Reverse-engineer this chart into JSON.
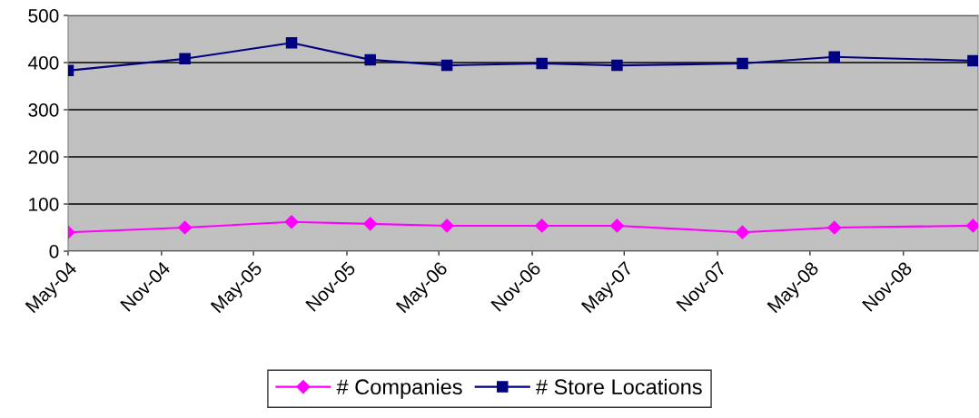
{
  "chart_data": {
    "type": "line",
    "x": [
      "2004-05-01",
      "2004-12-17",
      "2005-07-15",
      "2005-12-17",
      "2006-05-17",
      "2006-11-20",
      "2007-04-17",
      "2007-12-20",
      "2008-06-18",
      "2009-03-18"
    ],
    "series": [
      {
        "name": "# Companies",
        "color": "#ff00ff",
        "marker": "diamond",
        "values": [
          40,
          50,
          62,
          58,
          54,
          54,
          54,
          40,
          50,
          54
        ]
      },
      {
        "name": "# Store Locations",
        "color": "#000080",
        "marker": "square",
        "values": [
          383,
          408,
          442,
          406,
          394,
          398,
          394,
          398,
          412,
          404
        ]
      }
    ],
    "xlim": [
      "2004-05-01",
      "2009-03-28"
    ],
    "xticks": [
      {
        "value": "2004-05-01",
        "label": "May-04"
      },
      {
        "value": "2004-11-01",
        "label": "Nov-04"
      },
      {
        "value": "2005-05-01",
        "label": "May-05"
      },
      {
        "value": "2005-11-01",
        "label": "Nov-05"
      },
      {
        "value": "2006-05-01",
        "label": "May-06"
      },
      {
        "value": "2006-11-01",
        "label": "Nov-06"
      },
      {
        "value": "2007-05-01",
        "label": "May-07"
      },
      {
        "value": "2007-11-01",
        "label": "Nov-07"
      },
      {
        "value": "2008-05-01",
        "label": "May-08"
      },
      {
        "value": "2008-11-01",
        "label": "Nov-08"
      }
    ],
    "ylim": [
      0,
      500
    ],
    "yticks": [
      0,
      100,
      200,
      300,
      400,
      500
    ],
    "grid": "y",
    "legend": "bottom",
    "line_style": "solid"
  }
}
